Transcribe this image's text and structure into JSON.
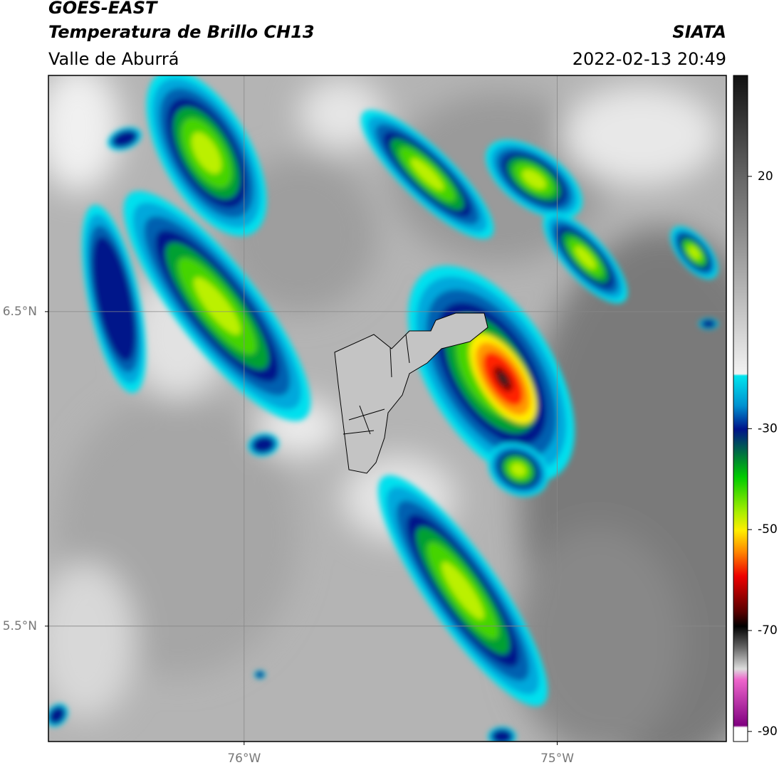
{
  "header": {
    "title": "GOES-EAST",
    "subtitle": "Temperatura de Brillo CH13",
    "region": "Valle de Aburrá",
    "source": "SIATA",
    "datetime": "2022-02-13 20:49"
  },
  "map": {
    "xlim": [
      -76.625,
      -74.46
    ],
    "ylim": [
      5.133,
      7.251
    ],
    "xticks": [
      {
        "value": -76,
        "label": "76°W"
      },
      {
        "value": -75,
        "label": "75°W"
      }
    ],
    "yticks": [
      {
        "value": 6.5,
        "label": "6.5°N"
      },
      {
        "value": 5.5,
        "label": "5.5°N"
      }
    ],
    "grid": true
  },
  "colorbar": {
    "lim": [
      -92,
      40
    ],
    "ticks": [
      20,
      -30,
      -50,
      -70,
      -90
    ]
  }
}
